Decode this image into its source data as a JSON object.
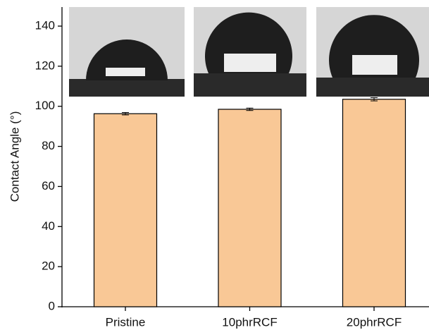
{
  "chart_data": {
    "type": "bar",
    "ylabel": "Contact Angle (°)",
    "categories": [
      "Pristine",
      "10phrRCF",
      "20phrRCF"
    ],
    "values": [
      96.3,
      98.5,
      103.5
    ],
    "errors": [
      0.6,
      0.6,
      0.8
    ],
    "color": "#f9c896",
    "ylim": [
      0,
      150
    ],
    "yticks": [
      0,
      20,
      40,
      60,
      80,
      100,
      120,
      140
    ]
  }
}
